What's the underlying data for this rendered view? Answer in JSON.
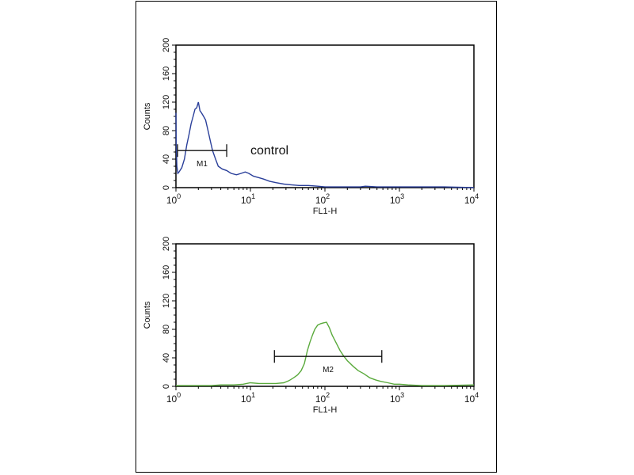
{
  "chart_data": [
    {
      "type": "line",
      "xlabel": "FL1-H",
      "ylabel": "Counts",
      "xscale": "log",
      "xlim": [
        1,
        10000
      ],
      "ylim": [
        0,
        200
      ],
      "xticks": [
        "10^0",
        "10^1",
        "10^2",
        "10^3",
        "10^4"
      ],
      "yticks": [
        0,
        40,
        80,
        120,
        160,
        200
      ],
      "grid": false,
      "annotation": "control",
      "color": "#2a3f9a",
      "marker": {
        "label": "M1",
        "range": [
          1.05,
          4.8
        ],
        "y": 52
      },
      "series": [
        {
          "x": [
            1.0,
            1.01,
            1.03,
            1.06,
            1.1,
            1.2,
            1.3,
            1.4,
            1.5,
            1.6,
            1.7,
            1.8,
            1.9,
            2.0,
            2.1,
            2.2,
            2.35,
            2.5,
            2.7,
            2.9,
            3.1,
            3.4,
            3.7,
            4.2,
            4.8,
            5.5,
            6.5,
            7.5,
            8.5,
            9.5,
            11,
            13,
            15,
            18,
            22,
            28,
            35,
            45,
            60,
            80,
            100,
            150,
            200,
            300,
            350,
            500,
            800,
            1000,
            2000,
            4000,
            10000
          ],
          "y": [
            105,
            60,
            30,
            20,
            22,
            28,
            40,
            60,
            75,
            90,
            100,
            110,
            112,
            120,
            108,
            105,
            100,
            95,
            80,
            65,
            52,
            40,
            30,
            26,
            24,
            20,
            18,
            20,
            22,
            20,
            16,
            14,
            12,
            9,
            7,
            5,
            4,
            3,
            3,
            2,
            1,
            1,
            1,
            1,
            2,
            1,
            1,
            1,
            1,
            1,
            0
          ]
        }
      ]
    },
    {
      "type": "line",
      "xlabel": "FL1-H",
      "ylabel": "Counts",
      "xscale": "log",
      "xlim": [
        1,
        10000
      ],
      "ylim": [
        0,
        200
      ],
      "xticks": [
        "10^0",
        "10^1",
        "10^2",
        "10^3",
        "10^4"
      ],
      "yticks": [
        0,
        40,
        80,
        120,
        160,
        200
      ],
      "grid": false,
      "color": "#5aaa3c",
      "marker": {
        "label": "M2",
        "range": [
          21,
          580
        ],
        "y": 42
      },
      "series": [
        {
          "x": [
            1,
            2,
            3,
            4,
            6,
            8,
            10,
            13,
            17,
            22,
            28,
            33,
            38,
            43,
            48,
            53,
            58,
            63,
            68,
            73,
            80,
            88,
            95,
            105,
            115,
            125,
            140,
            160,
            180,
            200,
            240,
            280,
            330,
            400,
            480,
            560,
            700,
            850,
            1000,
            1300,
            2000,
            4000,
            10000
          ],
          "y": [
            1,
            1,
            1,
            2,
            2,
            3,
            5,
            4,
            4,
            4,
            5,
            8,
            12,
            16,
            22,
            32,
            50,
            62,
            72,
            80,
            86,
            88,
            89,
            90,
            82,
            72,
            62,
            50,
            42,
            36,
            28,
            22,
            18,
            12,
            9,
            7,
            5,
            3,
            3,
            2,
            1,
            1,
            2
          ]
        }
      ]
    }
  ]
}
